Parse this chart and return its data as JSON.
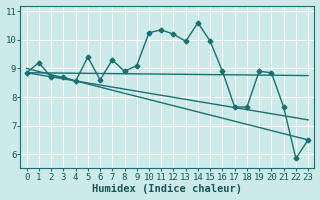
{
  "xlabel": "Humidex (Indice chaleur)",
  "bg_color": "#cceaea",
  "grid_color": "#ffffff",
  "line_color": "#1a7070",
  "xlim": [
    -0.5,
    23.5
  ],
  "ylim": [
    5.5,
    11.2
  ],
  "xticks": [
    0,
    1,
    2,
    3,
    4,
    5,
    6,
    7,
    8,
    9,
    10,
    11,
    12,
    13,
    14,
    15,
    16,
    17,
    18,
    19,
    20,
    21,
    22,
    23
  ],
  "yticks": [
    6,
    7,
    8,
    9,
    10,
    11
  ],
  "line1_x": [
    0,
    1,
    2,
    3,
    4,
    5,
    6,
    7,
    8,
    9,
    10,
    11,
    12,
    13,
    14,
    15,
    16,
    17,
    18,
    19,
    20,
    21,
    22,
    23
  ],
  "line1_y": [
    8.85,
    9.2,
    8.7,
    8.7,
    8.55,
    9.4,
    8.6,
    9.3,
    8.9,
    9.1,
    10.25,
    10.35,
    10.2,
    9.95,
    10.6,
    9.95,
    8.9,
    7.65,
    7.65,
    8.9,
    8.85,
    7.65,
    5.85,
    6.5
  ],
  "line2_x": [
    0,
    23
  ],
  "line2_y": [
    8.85,
    8.75
  ],
  "line3_x": [
    0,
    23
  ],
  "line3_y": [
    9.0,
    6.5
  ],
  "line4_x": [
    0,
    23
  ],
  "line4_y": [
    8.85,
    7.2
  ]
}
